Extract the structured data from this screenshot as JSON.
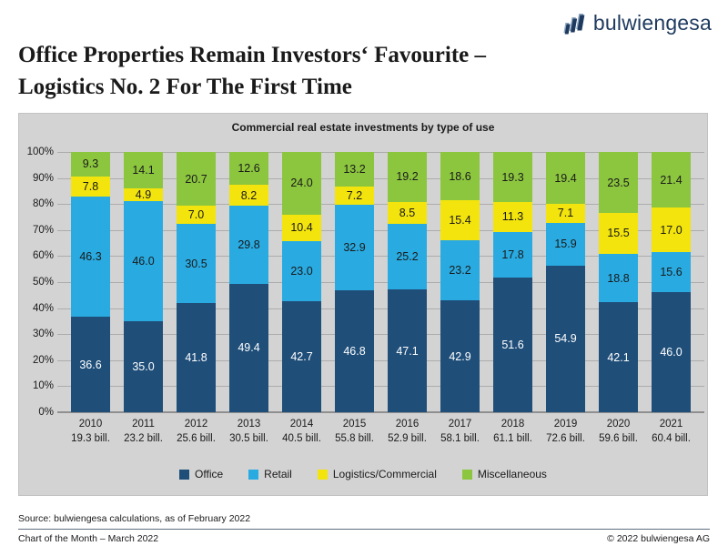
{
  "header": {
    "logo_text": "bulwiengesa",
    "title_line1": "Office Properties Remain Investors‘ Favourite –",
    "title_line2": "Logistics No. 2 For The First Time"
  },
  "chart_data": {
    "type": "bar",
    "stacked": true,
    "percent_stacked": true,
    "title": "Commercial real estate investments by type of use",
    "categories": [
      "2010",
      "2011",
      "2012",
      "2013",
      "2014",
      "2015",
      "2016",
      "2017",
      "2018",
      "2019",
      "2020",
      "2021"
    ],
    "category_totals": [
      "19.3 bill.",
      "23.2 bill.",
      "25.6 bill.",
      "30.5 bill.",
      "40.5 bill.",
      "55.8 bill.",
      "52.9 bill.",
      "58.1 bill.",
      "61.1 bill.",
      "72.6 bill.",
      "59.6 bill.",
      "60.4 bill."
    ],
    "series": [
      {
        "name": "Office",
        "color": "#1F4E79",
        "label_color": "#ffffff",
        "values": [
          36.6,
          35.0,
          41.8,
          49.4,
          42.7,
          46.8,
          47.1,
          42.9,
          51.6,
          54.9,
          42.1,
          46.0
        ]
      },
      {
        "name": "Retail",
        "color": "#29ABE2",
        "label_color": "#1a1a1a",
        "values": [
          46.3,
          46.0,
          30.5,
          29.8,
          23.0,
          32.9,
          25.2,
          23.2,
          17.8,
          15.9,
          18.8,
          15.6
        ]
      },
      {
        "name": "Logistics/Commercial",
        "color": "#F2E40C",
        "label_color": "#1a1a1a",
        "values": [
          7.8,
          4.9,
          7.0,
          8.2,
          10.4,
          7.2,
          8.5,
          15.4,
          11.3,
          7.1,
          15.5,
          17.0
        ]
      },
      {
        "name": "Miscellaneous",
        "color": "#8CC63F",
        "label_color": "#1a1a1a",
        "values": [
          9.3,
          14.1,
          20.7,
          12.6,
          24.0,
          13.2,
          19.2,
          18.6,
          19.3,
          19.4,
          23.5,
          21.4
        ]
      }
    ],
    "y_ticks": [
      "0%",
      "10%",
      "20%",
      "30%",
      "40%",
      "50%",
      "60%",
      "70%",
      "80%",
      "90%",
      "100%"
    ],
    "ylim": [
      0,
      100
    ],
    "grid": true,
    "legend_position": "bottom"
  },
  "footer": {
    "source": "Source: bulwiengesa calculations, as of February 2022",
    "left": "Chart of the Month – March 2022",
    "right": "© 2022 bulwiengesa AG"
  },
  "colors": {
    "panel_bg": "#D3D3D3",
    "gridline": "#ACACAC",
    "axis_line": "#8F8F8F",
    "logo_navy": "#1E3A5F",
    "logo_accent": "#8FA9C2"
  }
}
